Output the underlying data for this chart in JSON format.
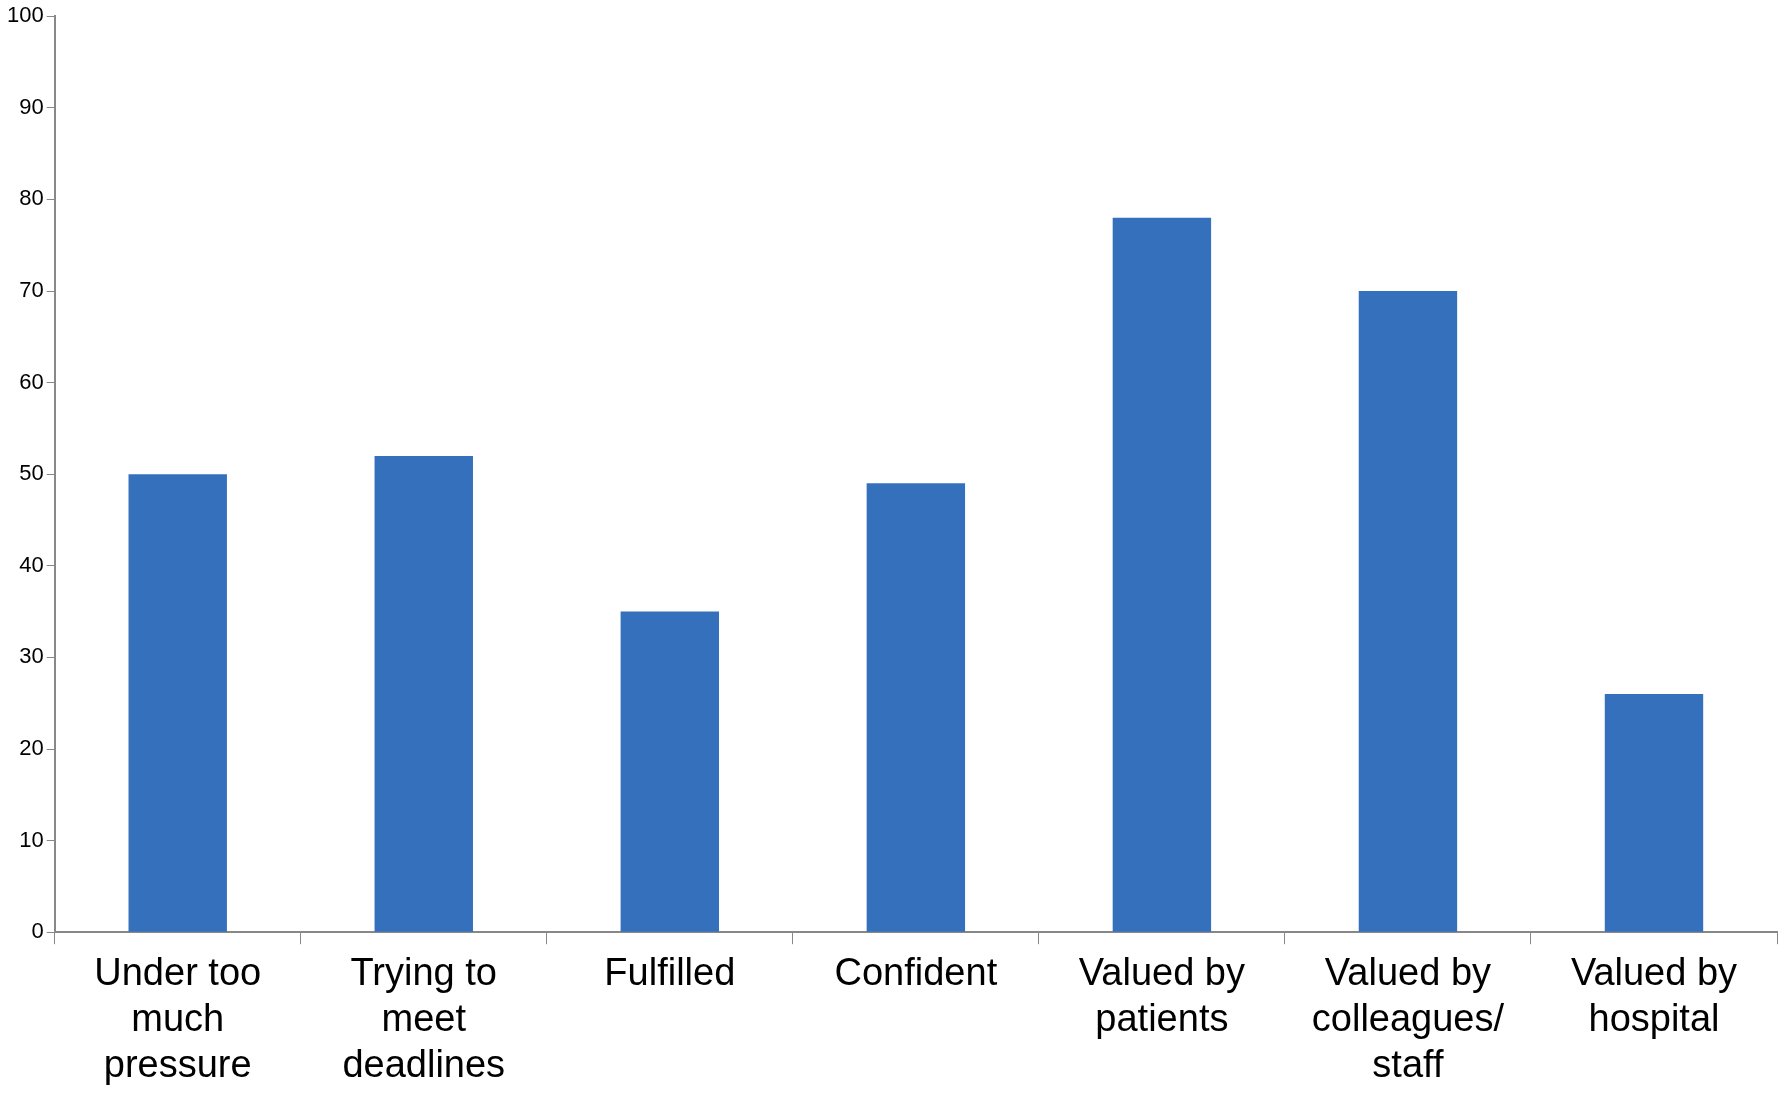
{
  "chart_data": {
    "type": "bar",
    "categories": [
      "Under too much pressure",
      "Trying to meet deadlines",
      "Fulfilled",
      "Confident",
      "Valued by patients",
      "Valued by colleagues/ staff",
      "Valued by hospital"
    ],
    "values": [
      50,
      52,
      35,
      49,
      78,
      70,
      26
    ],
    "color": "#3470bb",
    "ylim": [
      0,
      100
    ],
    "yticks": [
      0,
      10,
      20,
      30,
      40,
      50,
      60,
      70,
      80,
      90,
      100
    ],
    "grid": false,
    "legend": false
  }
}
